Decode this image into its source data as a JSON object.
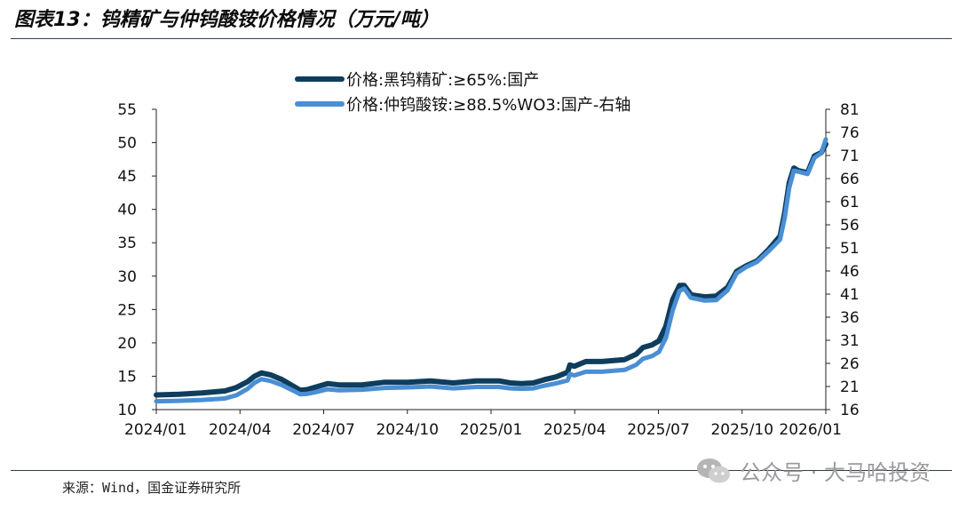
{
  "figure": {
    "title": "图表13：钨精矿与仲钨酸铵价格情况（万元/吨）",
    "source": "来源：Wind，国金证券研究所",
    "watermark": "公众号 · 大马哈投资"
  },
  "colors": {
    "series1": "#0e3d5e",
    "series2": "#4a8fd4",
    "rule": "#2a3f57"
  },
  "chart_data": {
    "type": "line",
    "title": "钨精矿与仲钨酸铵价格情况（万元/吨）",
    "x_ticks": [
      "2024/01",
      "2024/04",
      "2024/07",
      "2024/10",
      "2025/01",
      "2025/04",
      "2025/07",
      "2025/10",
      "2026/01"
    ],
    "y_left": {
      "range": [
        10,
        55
      ],
      "ticks": [
        "10",
        "15",
        "20",
        "25",
        "30",
        "35",
        "40",
        "45",
        "50",
        "55"
      ]
    },
    "y_right": {
      "range": [
        16,
        81
      ],
      "ticks": [
        "16",
        "21",
        "26",
        "31",
        "36",
        "41",
        "46",
        "51",
        "56",
        "61",
        "66",
        "71",
        "76",
        "81"
      ]
    },
    "series": [
      {
        "name": "价格:黑钨精矿:≥65%:国产",
        "axis": "left",
        "points": [
          [
            0,
            12.2
          ],
          [
            1,
            12.3
          ],
          [
            2,
            12.5
          ],
          [
            3,
            12.8
          ],
          [
            3.5,
            13.3
          ],
          [
            4,
            14.2
          ],
          [
            4.3,
            15.0
          ],
          [
            4.6,
            15.5
          ],
          [
            5,
            15.2
          ],
          [
            5.5,
            14.5
          ],
          [
            6,
            13.5
          ],
          [
            6.3,
            12.9
          ],
          [
            6.6,
            13.0
          ],
          [
            7,
            13.4
          ],
          [
            7.5,
            13.9
          ],
          [
            8,
            13.7
          ],
          [
            9,
            13.7
          ],
          [
            10,
            14.1
          ],
          [
            11,
            14.1
          ],
          [
            12,
            14.3
          ],
          [
            13,
            14.0
          ],
          [
            14,
            14.3
          ],
          [
            15,
            14.3
          ],
          [
            15.5,
            14.0
          ],
          [
            16,
            13.9
          ],
          [
            16.5,
            14.0
          ],
          [
            17,
            14.5
          ],
          [
            17.5,
            14.9
          ],
          [
            18,
            15.6
          ],
          [
            18.1,
            16.7
          ],
          [
            18.3,
            16.5
          ],
          [
            18.8,
            17.2
          ],
          [
            19.5,
            17.2
          ],
          [
            20.5,
            17.5
          ],
          [
            21,
            18.3
          ],
          [
            21.3,
            19.3
          ],
          [
            21.7,
            19.7
          ],
          [
            22,
            20.3
          ],
          [
            22.3,
            22.5
          ],
          [
            22.6,
            26.5
          ],
          [
            22.9,
            28.6
          ],
          [
            23.1,
            28.6
          ],
          [
            23.4,
            27.2
          ],
          [
            24,
            26.9
          ],
          [
            24.5,
            27.0
          ],
          [
            25,
            28.3
          ],
          [
            25.4,
            30.7
          ],
          [
            25.8,
            31.5
          ],
          [
            26.3,
            32.3
          ],
          [
            26.8,
            34.0
          ],
          [
            27.3,
            36.0
          ],
          [
            27.5,
            39.5
          ],
          [
            27.7,
            44.0
          ],
          [
            27.9,
            46.2
          ],
          [
            28.1,
            45.8
          ],
          [
            28.5,
            45.5
          ],
          [
            28.8,
            48.0
          ],
          [
            29.1,
            48.5
          ],
          [
            29.3,
            49.8
          ]
        ]
      },
      {
        "name": "价格:仲钨酸铵:≥88.5%WO3:国产-右轴",
        "axis": "right",
        "points": [
          [
            0,
            17.8
          ],
          [
            1,
            17.9
          ],
          [
            2,
            18.1
          ],
          [
            3,
            18.4
          ],
          [
            3.5,
            19.1
          ],
          [
            4,
            20.5
          ],
          [
            4.3,
            21.8
          ],
          [
            4.6,
            22.6
          ],
          [
            5,
            22.2
          ],
          [
            5.5,
            21.3
          ],
          [
            6,
            20.1
          ],
          [
            6.3,
            19.3
          ],
          [
            6.6,
            19.4
          ],
          [
            7,
            19.8
          ],
          [
            7.5,
            20.4
          ],
          [
            8,
            20.2
          ],
          [
            9,
            20.3
          ],
          [
            10,
            20.7
          ],
          [
            11,
            20.8
          ],
          [
            12,
            21.0
          ],
          [
            13,
            20.6
          ],
          [
            14,
            20.9
          ],
          [
            15,
            20.9
          ],
          [
            15.5,
            20.6
          ],
          [
            16,
            20.5
          ],
          [
            16.5,
            20.6
          ],
          [
            17,
            21.2
          ],
          [
            17.5,
            21.7
          ],
          [
            18,
            22.3
          ],
          [
            18.1,
            23.7
          ],
          [
            18.3,
            23.4
          ],
          [
            18.8,
            24.2
          ],
          [
            19.5,
            24.2
          ],
          [
            20.5,
            24.6
          ],
          [
            21,
            25.7
          ],
          [
            21.3,
            27.0
          ],
          [
            21.7,
            27.6
          ],
          [
            22,
            28.5
          ],
          [
            22.3,
            31.5
          ],
          [
            22.6,
            37.5
          ],
          [
            22.9,
            41.7
          ],
          [
            23.1,
            42.2
          ],
          [
            23.4,
            40.2
          ],
          [
            24,
            39.6
          ],
          [
            24.5,
            39.7
          ],
          [
            25,
            41.8
          ],
          [
            25.4,
            45.5
          ],
          [
            25.8,
            46.8
          ],
          [
            26.3,
            48.0
          ],
          [
            26.8,
            50.3
          ],
          [
            27.3,
            52.8
          ],
          [
            27.5,
            57.5
          ],
          [
            27.7,
            64.0
          ],
          [
            27.9,
            67.7
          ],
          [
            28.1,
            67.5
          ],
          [
            28.5,
            67.0
          ],
          [
            28.8,
            70.5
          ],
          [
            29.1,
            71.5
          ],
          [
            29.3,
            74.5
          ]
        ]
      }
    ]
  }
}
